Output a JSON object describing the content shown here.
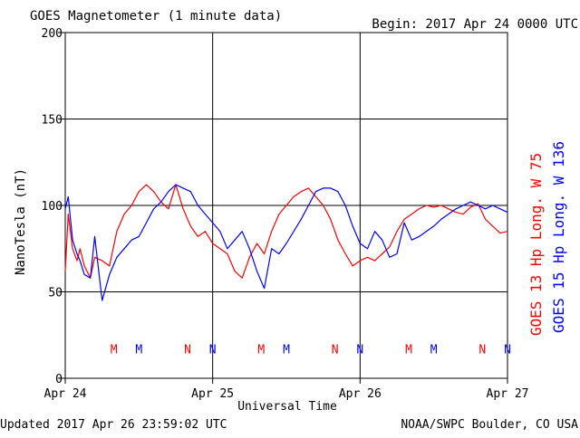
{
  "chart_data": {
    "type": "line",
    "title": "GOES Magnetometer (1 minute data)",
    "begin_label": "Begin:  2017 Apr 24 0000 UTC",
    "ylabel": "NanoTesla (nT)",
    "xlabel": "Universal Time",
    "ylim": [
      0,
      200
    ],
    "y_ticks": [
      0,
      50,
      100,
      150,
      200
    ],
    "xlim": [
      0,
      3
    ],
    "x_tick_labels": [
      "Apr 24",
      "Apr 25",
      "Apr 26",
      "Apr 27"
    ],
    "grid": true,
    "footer_left": "Updated 2017 Apr 26 23:59:02 UTC",
    "footer_right": "NOAA/SWPC Boulder, CO USA",
    "series": [
      {
        "name": "GOES 13 Hp  Long. W 75",
        "color": "#ff0000",
        "x": [
          0.0,
          0.02,
          0.05,
          0.08,
          0.1,
          0.13,
          0.17,
          0.2,
          0.25,
          0.3,
          0.35,
          0.4,
          0.45,
          0.5,
          0.55,
          0.6,
          0.65,
          0.7,
          0.75,
          0.8,
          0.85,
          0.9,
          0.95,
          1.0,
          1.05,
          1.1,
          1.15,
          1.2,
          1.25,
          1.3,
          1.35,
          1.4,
          1.45,
          1.5,
          1.55,
          1.6,
          1.65,
          1.7,
          1.75,
          1.8,
          1.85,
          1.9,
          1.95,
          2.0,
          2.05,
          2.1,
          2.15,
          2.2,
          2.25,
          2.3,
          2.35,
          2.4,
          2.45,
          2.5,
          2.55,
          2.6,
          2.65,
          2.7,
          2.75,
          2.8,
          2.85,
          2.9,
          2.95,
          3.0
        ],
        "values": [
          62,
          95,
          75,
          68,
          75,
          65,
          58,
          70,
          68,
          65,
          85,
          95,
          100,
          108,
          112,
          108,
          102,
          98,
          112,
          98,
          88,
          82,
          85,
          78,
          75,
          72,
          62,
          58,
          70,
          78,
          72,
          85,
          95,
          100,
          105,
          108,
          110,
          105,
          100,
          92,
          80,
          72,
          65,
          68,
          70,
          68,
          72,
          76,
          85,
          92,
          95,
          98,
          100,
          99,
          100,
          98,
          96,
          95,
          99,
          101,
          92,
          88,
          84,
          85
        ]
      },
      {
        "name": "GOES 15 Hp  Long. W 136",
        "color": "#0000ff",
        "x": [
          0.0,
          0.02,
          0.05,
          0.08,
          0.1,
          0.13,
          0.17,
          0.2,
          0.25,
          0.3,
          0.35,
          0.4,
          0.45,
          0.5,
          0.55,
          0.6,
          0.65,
          0.7,
          0.75,
          0.8,
          0.85,
          0.9,
          0.95,
          1.0,
          1.05,
          1.1,
          1.15,
          1.2,
          1.25,
          1.3,
          1.35,
          1.4,
          1.45,
          1.5,
          1.55,
          1.6,
          1.65,
          1.7,
          1.75,
          1.8,
          1.85,
          1.9,
          1.95,
          2.0,
          2.05,
          2.1,
          2.15,
          2.2,
          2.25,
          2.3,
          2.35,
          2.4,
          2.45,
          2.5,
          2.55,
          2.6,
          2.65,
          2.7,
          2.75,
          2.8,
          2.85,
          2.9,
          2.95,
          3.0
        ],
        "values": [
          98,
          105,
          80,
          72,
          68,
          60,
          58,
          82,
          45,
          60,
          70,
          75,
          80,
          82,
          90,
          98,
          102,
          108,
          112,
          110,
          108,
          100,
          95,
          90,
          85,
          75,
          80,
          85,
          75,
          62,
          52,
          75,
          72,
          78,
          85,
          92,
          100,
          108,
          110,
          110,
          108,
          100,
          88,
          78,
          75,
          85,
          80,
          70,
          72,
          90,
          80,
          82,
          85,
          88,
          92,
          95,
          98,
          100,
          102,
          100,
          98,
          100,
          98,
          96
        ]
      }
    ],
    "markers": [
      {
        "letter": "M",
        "x": 0.33,
        "color": "#ff0000"
      },
      {
        "letter": "M",
        "x": 0.5,
        "color": "#0000ff"
      },
      {
        "letter": "N",
        "x": 0.83,
        "color": "#ff0000"
      },
      {
        "letter": "N",
        "x": 1.0,
        "color": "#0000ff"
      },
      {
        "letter": "M",
        "x": 1.33,
        "color": "#ff0000"
      },
      {
        "letter": "M",
        "x": 1.5,
        "color": "#0000ff"
      },
      {
        "letter": "N",
        "x": 1.83,
        "color": "#ff0000"
      },
      {
        "letter": "N",
        "x": 2.0,
        "color": "#0000ff"
      },
      {
        "letter": "M",
        "x": 2.33,
        "color": "#ff0000"
      },
      {
        "letter": "M",
        "x": 2.5,
        "color": "#0000ff"
      },
      {
        "letter": "N",
        "x": 2.83,
        "color": "#ff0000"
      },
      {
        "letter": "N",
        "x": 3.0,
        "color": "#0000ff"
      }
    ],
    "marker_y": 17
  }
}
